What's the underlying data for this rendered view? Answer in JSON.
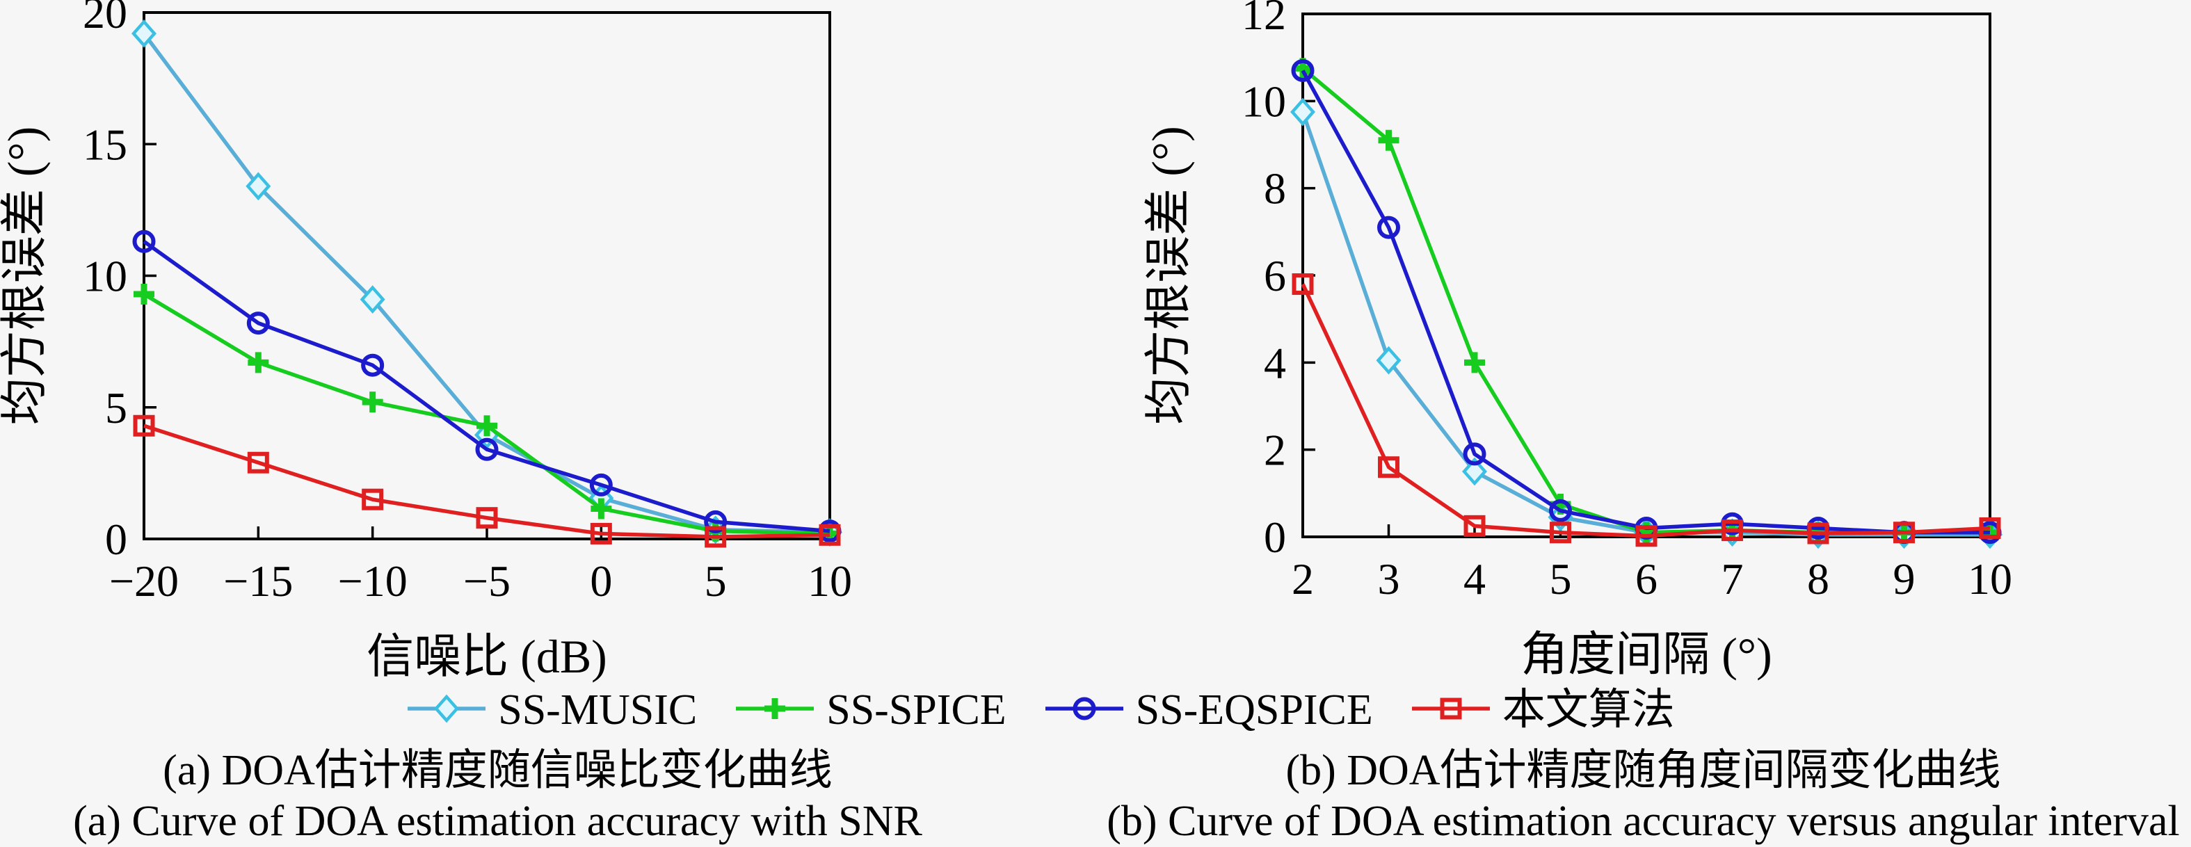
{
  "page": {
    "background": "#f6f6f6",
    "axis_color": "#000000"
  },
  "legend": {
    "position": "bottom-center",
    "items": [
      {
        "label": "SS-MUSIC",
        "color": "#58aed6",
        "marker": "diamond",
        "marker_stroke": "#3bbfe3",
        "marker_fill": "#e2f7fd"
      },
      {
        "label": "SS-SPICE",
        "color": "#16cc1f",
        "marker": "plus",
        "marker_stroke": "#16cc1f",
        "marker_fill": "#16cc1f"
      },
      {
        "label": "SS-EQSPICE",
        "color": "#1c1ccc",
        "marker": "circle",
        "marker_stroke": "#1c1ccc",
        "marker_fill": "none"
      },
      {
        "label": "本文算法",
        "color": "#e02020",
        "marker": "square",
        "marker_stroke": "#e02020",
        "marker_fill": "none"
      }
    ]
  },
  "chart_data": [
    {
      "id": "a",
      "type": "line",
      "xlabel": "信噪比 (dB)",
      "ylabel": "均方根误差 (°)",
      "x": [
        -20,
        -15,
        -10,
        -5,
        0,
        5,
        10
      ],
      "xtick_labels": [
        "−20",
        "−15",
        "−10",
        "−5",
        "0",
        "5",
        "10"
      ],
      "xlim": [
        -20,
        10
      ],
      "ylim": [
        0,
        20
      ],
      "yticks": [
        0,
        5,
        10,
        15,
        20
      ],
      "ytick_labels": [
        "0",
        "5",
        "10",
        "15",
        "20"
      ],
      "grid": false,
      "series": [
        {
          "name": "SS-MUSIC",
          "marker": "diamond",
          "color": "#58aed6",
          "values": [
            19.2,
            13.4,
            9.1,
            3.95,
            1.55,
            0.35,
            0.25
          ]
        },
        {
          "name": "SS-SPICE",
          "marker": "plus",
          "color": "#16cc1f",
          "values": [
            9.3,
            6.7,
            5.2,
            4.3,
            1.15,
            0.3,
            0.2
          ]
        },
        {
          "name": "SS-EQSPICE",
          "marker": "circle",
          "color": "#1c1ccc",
          "values": [
            11.3,
            8.2,
            6.6,
            3.4,
            2.05,
            0.65,
            0.3
          ]
        },
        {
          "name": "本文算法",
          "marker": "square",
          "color": "#e02020",
          "values": [
            4.3,
            2.9,
            1.5,
            0.8,
            0.2,
            0.08,
            0.15
          ]
        }
      ],
      "caption_zh": "(a) DOA估计精度随信噪比变化曲线",
      "caption_en": "(a) Curve of DOA estimation accuracy with SNR"
    },
    {
      "id": "b",
      "type": "line",
      "xlabel": "角度间隔 (°)",
      "ylabel": "均方根误差 (°)",
      "x": [
        2,
        3,
        4,
        5,
        6,
        7,
        8,
        9,
        10
      ],
      "xtick_labels": [
        "2",
        "3",
        "4",
        "5",
        "6",
        "7",
        "8",
        "9",
        "10"
      ],
      "xlim": [
        2,
        10
      ],
      "ylim": [
        0,
        12
      ],
      "yticks": [
        0,
        2,
        4,
        6,
        8,
        10,
        12
      ],
      "ytick_labels": [
        "0",
        "2",
        "4",
        "6",
        "8",
        "10",
        "12"
      ],
      "grid": false,
      "series": [
        {
          "name": "SS-MUSIC",
          "marker": "diamond",
          "color": "#58aed6",
          "values": [
            9.75,
            4.05,
            1.5,
            0.45,
            0.1,
            0.1,
            0.05,
            0.05,
            0.05
          ]
        },
        {
          "name": "SS-SPICE",
          "marker": "plus",
          "color": "#16cc1f",
          "values": [
            10.75,
            9.1,
            4.0,
            0.75,
            0.1,
            0.15,
            0.1,
            0.1,
            0.1
          ]
        },
        {
          "name": "SS-EQSPICE",
          "marker": "circle",
          "color": "#1c1ccc",
          "values": [
            10.7,
            7.1,
            1.9,
            0.6,
            0.2,
            0.3,
            0.2,
            0.1,
            0.1
          ]
        },
        {
          "name": "本文算法",
          "marker": "square",
          "color": "#e02020",
          "values": [
            5.8,
            1.6,
            0.25,
            0.1,
            0.02,
            0.15,
            0.08,
            0.1,
            0.2
          ]
        }
      ],
      "caption_zh": "(b) DOA估计精度随角度间隔变化曲线",
      "caption_en": "(b) Curve of DOA estimation accuracy versus angular interval"
    }
  ]
}
